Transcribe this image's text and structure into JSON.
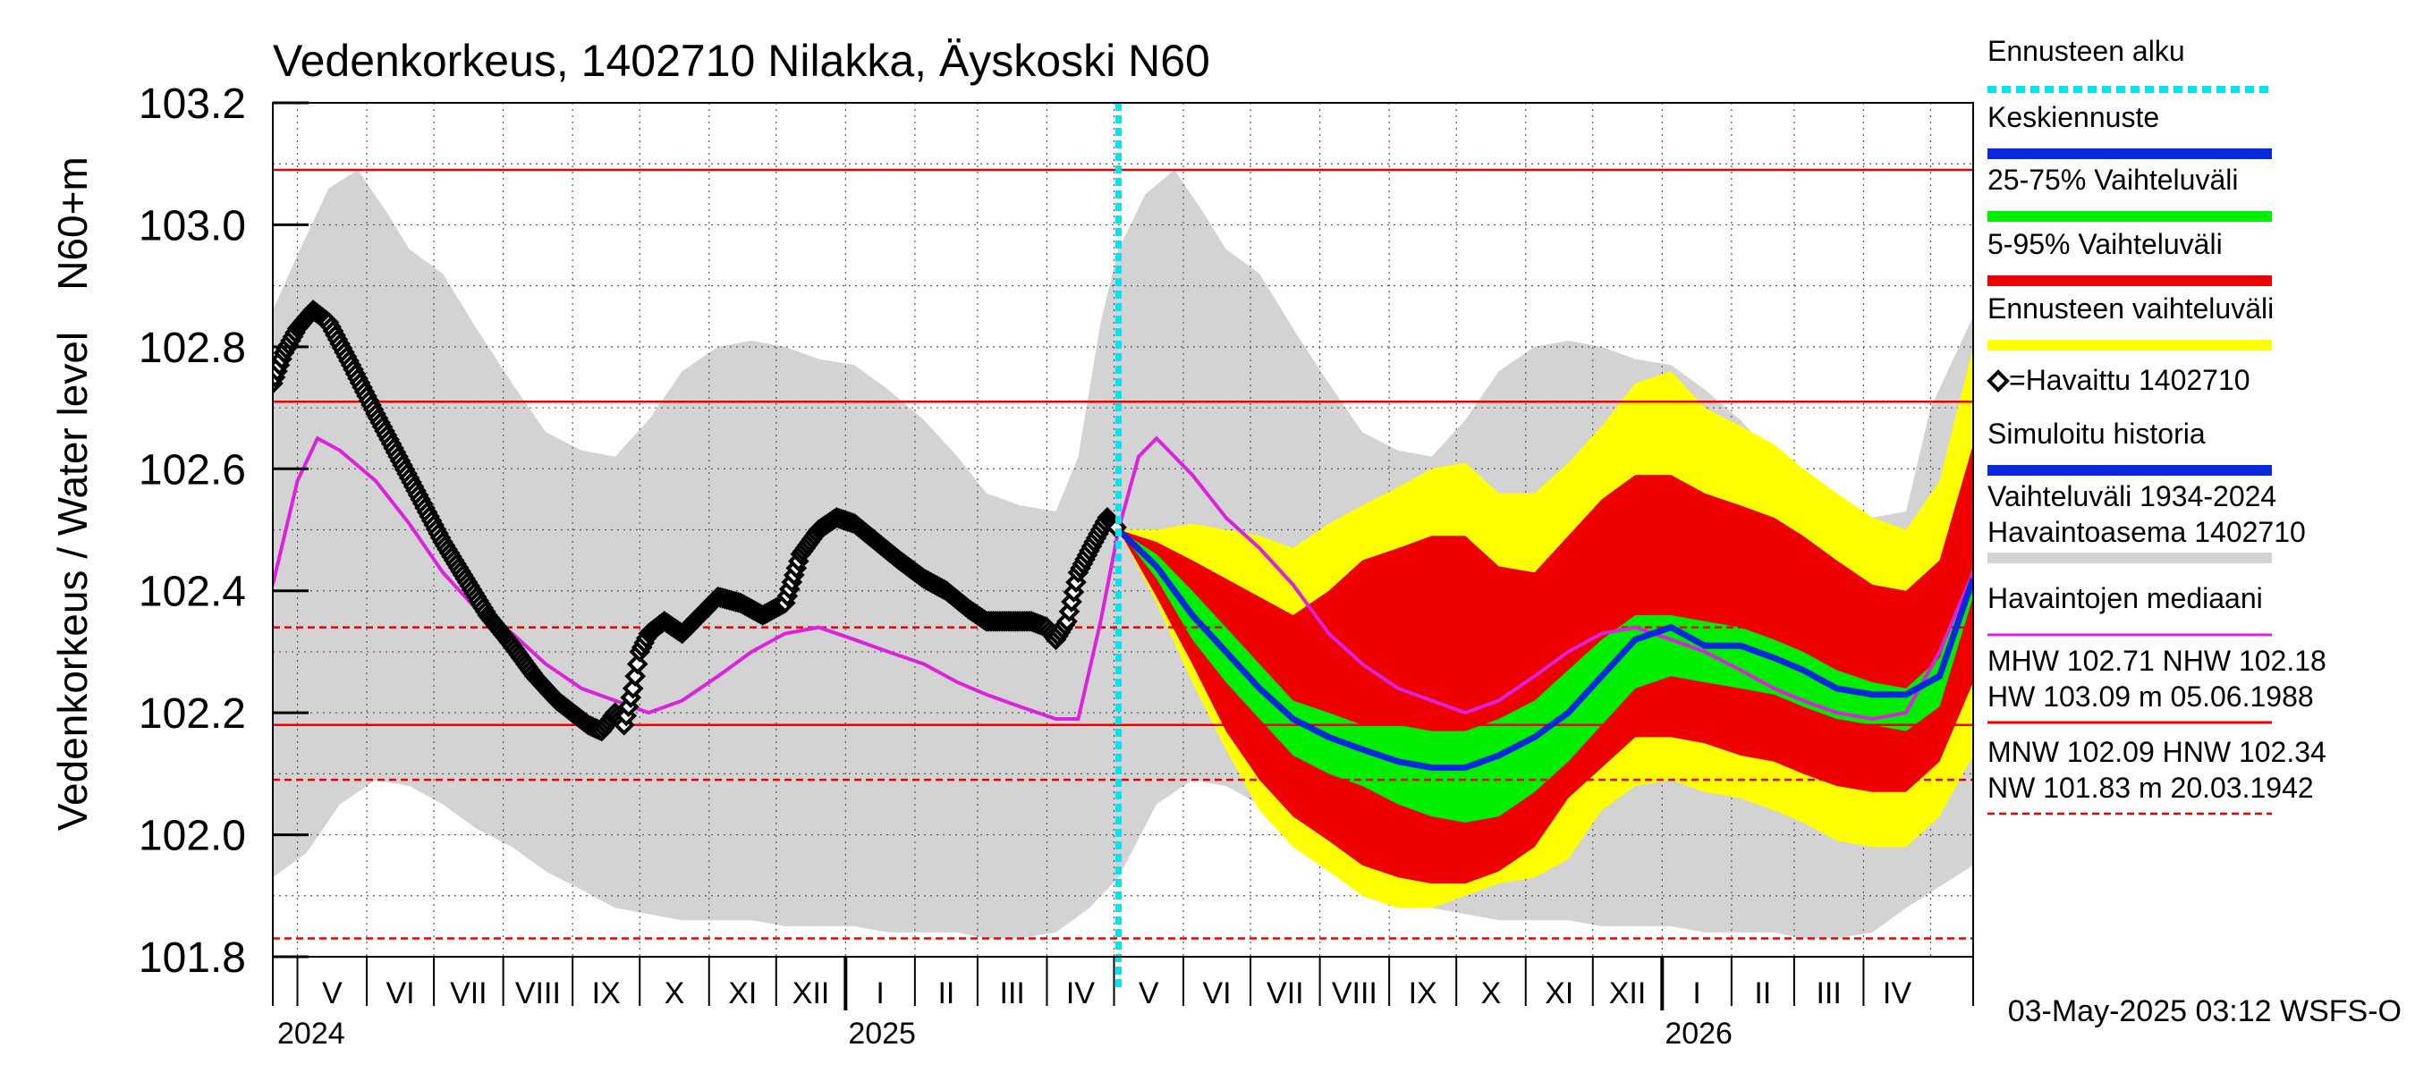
{
  "chart_data": {
    "type": "area",
    "title": "Vedenkorkeus, 1402710 Nilakka, Äyskoski N60",
    "ylabel": "Vedenkorkeus / Water level",
    "yunit": "N60+m",
    "ylim": [
      101.8,
      103.2
    ],
    "yticks": [
      "103.2",
      "103.0",
      "102.8",
      "102.6",
      "102.4",
      "102.2",
      "102.0",
      "101.8"
    ],
    "xlim": [
      "2024-04-20",
      "2026-05-20"
    ],
    "month_labels": [
      "V",
      "VI",
      "VII",
      "VIII",
      "IX",
      "X",
      "XI",
      "XII",
      "I",
      "II",
      "III",
      "IV",
      "V",
      "VI",
      "VII",
      "VIII",
      "IX",
      "X",
      "XI",
      "XII",
      "I",
      "II",
      "III",
      "IV"
    ],
    "year_labels": [
      "2024",
      "2025",
      "2026"
    ],
    "forecast_start": "2025-05-03",
    "footer": "03-May-2025 03:12 WSFS-O",
    "reference_lines": [
      {
        "name": "HW",
        "value": 103.09,
        "style": "solid"
      },
      {
        "name": "MHW",
        "value": 102.71,
        "style": "solid"
      },
      {
        "name": "HNW",
        "value": 102.34,
        "style": "dashed"
      },
      {
        "name": "NHW",
        "value": 102.18,
        "style": "solid"
      },
      {
        "name": "MNW",
        "value": 102.09,
        "style": "dashed"
      },
      {
        "name": "NW",
        "value": 101.83,
        "style": "dashed"
      }
    ],
    "legend": [
      {
        "label": "Ennusteen alku",
        "color": "#00e5ee",
        "kind": "dotted"
      },
      {
        "label": "Keskiennuste",
        "color": "#0a28dc",
        "kind": "line"
      },
      {
        "label": "25-75% Vaihteluväli",
        "color": "#00ee00",
        "kind": "line"
      },
      {
        "label": "5-95% Vaihteluväli",
        "color": "#ee0000",
        "kind": "line"
      },
      {
        "label": "Ennusteen vaihteluväli",
        "color": "#ffff00",
        "kind": "line"
      },
      {
        "label": "=Havaittu 1402710",
        "color": "#000000",
        "kind": "marker"
      },
      {
        "label": "Simuloitu historia",
        "color": "#0a28dc",
        "kind": "line"
      },
      {
        "label": "Vaihteluväli 1934-2024",
        "label2": " Havaintoasema 1402710",
        "color": "#d3d3d3",
        "kind": "line"
      },
      {
        "label": "Havaintojen mediaani",
        "color": "#dd22dd",
        "kind": "line"
      },
      {
        "label": "MHW 102.71 NHW 102.18",
        "label2": "HW 103.09 m 05.06.1988",
        "color": "#ee0000",
        "kind": "line"
      },
      {
        "label": "MNW 102.09 HNW 102.34",
        "label2": "NW 101.83 m 20.03.1942",
        "color": "#ee0000",
        "kind": "dashed"
      }
    ],
    "colors": {
      "history_band": "#d3d3d3",
      "forecast_total": "#ffff00",
      "p5_95": "#ee0000",
      "p25_75": "#00ee00",
      "mean": "#0a28dc",
      "observed": "#000000",
      "median": "#dd22dd",
      "forecast_start": "#00e5ee",
      "ref_lines": "#ee0000"
    },
    "series": {
      "history_upper": [
        [
          "2024-04-20",
          102.86
        ],
        [
          "2024-05-01",
          102.95
        ],
        [
          "2024-05-15",
          103.06
        ],
        [
          "2024-05-28",
          103.09
        ],
        [
          "2024-06-10",
          103.02
        ],
        [
          "2024-06-20",
          102.96
        ],
        [
          "2024-07-05",
          102.92
        ],
        [
          "2024-07-20",
          102.83
        ],
        [
          "2024-08-05",
          102.74
        ],
        [
          "2024-08-20",
          102.66
        ],
        [
          "2024-09-05",
          102.63
        ],
        [
          "2024-09-20",
          102.62
        ],
        [
          "2024-10-05",
          102.68
        ],
        [
          "2024-10-20",
          102.76
        ],
        [
          "2024-11-05",
          102.8
        ],
        [
          "2024-11-20",
          102.81
        ],
        [
          "2024-12-05",
          102.8
        ],
        [
          "2024-12-20",
          102.78
        ],
        [
          "2025-01-05",
          102.77
        ],
        [
          "2025-01-20",
          102.73
        ],
        [
          "2025-02-05",
          102.68
        ],
        [
          "2025-02-20",
          102.62
        ],
        [
          "2025-03-05",
          102.56
        ],
        [
          "2025-03-20",
          102.54
        ],
        [
          "2025-04-05",
          102.53
        ],
        [
          "2025-04-15",
          102.62
        ],
        [
          "2025-04-25",
          102.84
        ],
        [
          "2025-05-03",
          102.96
        ],
        [
          "2025-05-15",
          103.05
        ],
        [
          "2025-05-28",
          103.09
        ],
        [
          "2025-06-10",
          103.02
        ],
        [
          "2025-06-20",
          102.96
        ],
        [
          "2025-07-05",
          102.92
        ],
        [
          "2025-07-20",
          102.83
        ],
        [
          "2025-08-05",
          102.74
        ],
        [
          "2025-08-20",
          102.66
        ],
        [
          "2025-09-05",
          102.63
        ],
        [
          "2025-09-20",
          102.62
        ],
        [
          "2025-10-05",
          102.68
        ],
        [
          "2025-10-20",
          102.76
        ],
        [
          "2025-11-05",
          102.8
        ],
        [
          "2025-11-20",
          102.81
        ],
        [
          "2025-12-05",
          102.8
        ],
        [
          "2025-12-20",
          102.78
        ],
        [
          "2026-01-05",
          102.77
        ],
        [
          "2026-01-20",
          102.73
        ],
        [
          "2026-02-05",
          102.68
        ],
        [
          "2026-02-20",
          102.62
        ],
        [
          "2026-03-05",
          102.56
        ],
        [
          "2026-03-20",
          102.54
        ],
        [
          "2026-04-05",
          102.52
        ],
        [
          "2026-04-20",
          102.53
        ],
        [
          "2026-05-01",
          102.7
        ],
        [
          "2026-05-20",
          102.85
        ]
      ],
      "history_lower": [
        [
          "2024-04-20",
          101.93
        ],
        [
          "2024-05-05",
          101.97
        ],
        [
          "2024-05-20",
          102.05
        ],
        [
          "2024-06-05",
          102.09
        ],
        [
          "2024-06-20",
          102.08
        ],
        [
          "2024-07-05",
          102.05
        ],
        [
          "2024-07-20",
          102.01
        ],
        [
          "2024-08-05",
          101.98
        ],
        [
          "2024-08-20",
          101.94
        ],
        [
          "2024-09-05",
          101.91
        ],
        [
          "2024-09-20",
          101.88
        ],
        [
          "2024-10-05",
          101.87
        ],
        [
          "2024-10-20",
          101.86
        ],
        [
          "2024-11-05",
          101.86
        ],
        [
          "2024-11-20",
          101.86
        ],
        [
          "2024-12-05",
          101.85
        ],
        [
          "2024-12-20",
          101.85
        ],
        [
          "2025-01-05",
          101.85
        ],
        [
          "2025-01-20",
          101.84
        ],
        [
          "2025-02-05",
          101.84
        ],
        [
          "2025-02-20",
          101.84
        ],
        [
          "2025-03-05",
          101.83
        ],
        [
          "2025-03-20",
          101.83
        ],
        [
          "2025-04-05",
          101.84
        ],
        [
          "2025-04-20",
          101.88
        ],
        [
          "2025-05-03",
          101.93
        ],
        [
          "2025-05-20",
          102.05
        ],
        [
          "2025-06-05",
          102.09
        ],
        [
          "2025-06-20",
          102.08
        ],
        [
          "2025-07-05",
          102.05
        ],
        [
          "2025-07-20",
          102.01
        ],
        [
          "2025-08-05",
          101.98
        ],
        [
          "2025-08-20",
          101.94
        ],
        [
          "2025-09-05",
          101.91
        ],
        [
          "2025-09-20",
          101.88
        ],
        [
          "2025-10-05",
          101.87
        ],
        [
          "2025-10-20",
          101.86
        ],
        [
          "2025-11-05",
          101.86
        ],
        [
          "2025-11-20",
          101.86
        ],
        [
          "2025-12-05",
          101.85
        ],
        [
          "2025-12-20",
          101.85
        ],
        [
          "2026-01-05",
          101.85
        ],
        [
          "2026-01-20",
          101.84
        ],
        [
          "2026-02-05",
          101.84
        ],
        [
          "2026-02-20",
          101.84
        ],
        [
          "2026-03-05",
          101.83
        ],
        [
          "2026-03-20",
          101.83
        ],
        [
          "2026-04-05",
          101.84
        ],
        [
          "2026-04-20",
          101.88
        ],
        [
          "2026-05-20",
          101.95
        ]
      ],
      "median": [
        [
          "2024-04-20",
          102.41
        ],
        [
          "2024-05-01",
          102.58
        ],
        [
          "2024-05-10",
          102.65
        ],
        [
          "2024-05-20",
          102.63
        ],
        [
          "2024-06-05",
          102.58
        ],
        [
          "2024-06-20",
          102.51
        ],
        [
          "2024-07-05",
          102.43
        ],
        [
          "2024-07-20",
          102.37
        ],
        [
          "2024-08-05",
          102.33
        ],
        [
          "2024-08-20",
          102.28
        ],
        [
          "2024-09-05",
          102.24
        ],
        [
          "2024-09-20",
          102.22
        ],
        [
          "2024-10-05",
          102.2
        ],
        [
          "2024-10-20",
          102.22
        ],
        [
          "2024-11-05",
          102.26
        ],
        [
          "2024-11-20",
          102.3
        ],
        [
          "2024-12-05",
          102.33
        ],
        [
          "2024-12-20",
          102.34
        ],
        [
          "2025-01-05",
          102.32
        ],
        [
          "2025-01-20",
          102.3
        ],
        [
          "2025-02-05",
          102.28
        ],
        [
          "2025-02-20",
          102.25
        ],
        [
          "2025-03-05",
          102.23
        ],
        [
          "2025-03-20",
          102.21
        ],
        [
          "2025-04-05",
          102.19
        ],
        [
          "2025-04-15",
          102.19
        ],
        [
          "2025-04-25",
          102.35
        ],
        [
          "2025-05-03",
          102.5
        ],
        [
          "2025-05-12",
          102.62
        ],
        [
          "2025-05-20",
          102.65
        ],
        [
          "2025-06-05",
          102.59
        ],
        [
          "2025-06-20",
          102.52
        ],
        [
          "2025-07-05",
          102.47
        ],
        [
          "2025-07-20",
          102.41
        ],
        [
          "2025-08-05",
          102.33
        ],
        [
          "2025-08-20",
          102.28
        ],
        [
          "2025-09-05",
          102.24
        ],
        [
          "2025-09-20",
          102.22
        ],
        [
          "2025-10-05",
          102.2
        ],
        [
          "2025-10-20",
          102.22
        ],
        [
          "2025-11-05",
          102.26
        ],
        [
          "2025-11-20",
          102.3
        ],
        [
          "2025-12-05",
          102.33
        ],
        [
          "2025-12-20",
          102.34
        ],
        [
          "2026-01-05",
          102.32
        ],
        [
          "2026-01-20",
          102.3
        ],
        [
          "2026-02-05",
          102.27
        ],
        [
          "2026-02-20",
          102.24
        ],
        [
          "2026-03-05",
          102.22
        ],
        [
          "2026-03-20",
          102.2
        ],
        [
          "2026-04-05",
          102.19
        ],
        [
          "2026-04-20",
          102.2
        ],
        [
          "2026-05-05",
          102.3
        ],
        [
          "2026-05-20",
          102.43
        ]
      ],
      "observed": [
        [
          "2024-04-20",
          102.74
        ],
        [
          "2024-04-25",
          102.79
        ],
        [
          "2024-05-01",
          102.83
        ],
        [
          "2024-05-08",
          102.86
        ],
        [
          "2024-05-15",
          102.84
        ],
        [
          "2024-05-25",
          102.77
        ],
        [
          "2024-06-05",
          102.69
        ],
        [
          "2024-06-15",
          102.62
        ],
        [
          "2024-06-25",
          102.55
        ],
        [
          "2024-07-05",
          102.48
        ],
        [
          "2024-07-15",
          102.42
        ],
        [
          "2024-07-25",
          102.36
        ],
        [
          "2024-08-05",
          102.31
        ],
        [
          "2024-08-15",
          102.26
        ],
        [
          "2024-08-25",
          102.22
        ],
        [
          "2024-09-01",
          102.2
        ],
        [
          "2024-09-08",
          102.18
        ],
        [
          "2024-09-14",
          102.17
        ],
        [
          "2024-09-20",
          102.2
        ],
        [
          "2024-09-24",
          102.18
        ],
        [
          "2024-09-28",
          102.24
        ],
        [
          "2024-10-01",
          102.3
        ],
        [
          "2024-10-05",
          102.33
        ],
        [
          "2024-10-12",
          102.35
        ],
        [
          "2024-10-20",
          102.33
        ],
        [
          "2024-10-28",
          102.36
        ],
        [
          "2024-11-05",
          102.39
        ],
        [
          "2024-11-15",
          102.38
        ],
        [
          "2024-11-25",
          102.36
        ],
        [
          "2024-12-05",
          102.38
        ],
        [
          "2024-12-12",
          102.46
        ],
        [
          "2024-12-20",
          102.5
        ],
        [
          "2024-12-28",
          102.52
        ],
        [
          "2025-01-05",
          102.51
        ],
        [
          "2025-01-15",
          102.48
        ],
        [
          "2025-01-25",
          102.45
        ],
        [
          "2025-02-05",
          102.42
        ],
        [
          "2025-02-15",
          102.4
        ],
        [
          "2025-02-25",
          102.37
        ],
        [
          "2025-03-05",
          102.35
        ],
        [
          "2025-03-15",
          102.35
        ],
        [
          "2025-03-25",
          102.35
        ],
        [
          "2025-04-01",
          102.34
        ],
        [
          "2025-04-05",
          102.32
        ],
        [
          "2025-04-10",
          102.35
        ],
        [
          "2025-04-15",
          102.43
        ],
        [
          "2025-04-22",
          102.48
        ],
        [
          "2025-04-28",
          102.52
        ],
        [
          "2025-05-03",
          102.5
        ]
      ],
      "forecast_dates": [
        "2025-05-03",
        "2025-05-20",
        "2025-06-05",
        "2025-06-20",
        "2025-07-05",
        "2025-07-20",
        "2025-08-05",
        "2025-08-20",
        "2025-09-05",
        "2025-09-20",
        "2025-10-05",
        "2025-10-20",
        "2025-11-05",
        "2025-11-20",
        "2025-12-05",
        "2025-12-20",
        "2026-01-05",
        "2026-01-20",
        "2026-02-05",
        "2026-02-20",
        "2026-03-05",
        "2026-03-20",
        "2026-04-05",
        "2026-04-20",
        "2026-05-05",
        "2026-05-20"
      ],
      "forecast_max": [
        102.5,
        102.5,
        102.51,
        102.5,
        102.49,
        102.47,
        102.51,
        102.54,
        102.57,
        102.6,
        102.61,
        102.56,
        102.56,
        102.61,
        102.67,
        102.74,
        102.76,
        102.7,
        102.67,
        102.64,
        102.6,
        102.56,
        102.52,
        102.5,
        102.58,
        102.8
      ],
      "p95": [
        102.5,
        102.48,
        102.45,
        102.42,
        102.39,
        102.36,
        102.4,
        102.45,
        102.47,
        102.49,
        102.49,
        102.44,
        102.43,
        102.49,
        102.55,
        102.59,
        102.59,
        102.56,
        102.54,
        102.52,
        102.49,
        102.45,
        102.41,
        102.4,
        102.45,
        102.64
      ],
      "p75": [
        102.5,
        102.46,
        102.4,
        102.34,
        102.28,
        102.22,
        102.2,
        102.18,
        102.18,
        102.17,
        102.17,
        102.19,
        102.22,
        102.27,
        102.32,
        102.36,
        102.36,
        102.35,
        102.34,
        102.32,
        102.3,
        102.27,
        102.25,
        102.24,
        102.29,
        102.44
      ],
      "mean": [
        102.5,
        102.44,
        102.36,
        102.3,
        102.24,
        102.19,
        102.16,
        102.14,
        102.12,
        102.11,
        102.11,
        102.13,
        102.16,
        102.2,
        102.26,
        102.32,
        102.34,
        102.31,
        102.31,
        102.29,
        102.27,
        102.24,
        102.23,
        102.23,
        102.26,
        102.42
      ],
      "p25": [
        102.5,
        102.42,
        102.32,
        102.25,
        102.19,
        102.13,
        102.1,
        102.08,
        102.05,
        102.03,
        102.02,
        102.03,
        102.07,
        102.12,
        102.18,
        102.24,
        102.26,
        102.25,
        102.24,
        102.23,
        102.21,
        102.19,
        102.18,
        102.17,
        102.21,
        102.39
      ],
      "p5": [
        102.5,
        102.39,
        102.28,
        102.17,
        102.09,
        102.03,
        101.99,
        101.95,
        101.93,
        101.92,
        101.92,
        101.94,
        101.98,
        102.06,
        102.11,
        102.16,
        102.16,
        102.15,
        102.13,
        102.12,
        102.1,
        102.08,
        102.07,
        102.07,
        102.12,
        102.25
      ],
      "forecast_min": [
        102.5,
        102.38,
        102.25,
        102.14,
        102.04,
        101.98,
        101.94,
        101.9,
        101.88,
        101.88,
        101.9,
        101.92,
        101.93,
        101.96,
        102.04,
        102.08,
        102.09,
        102.07,
        102.06,
        102.04,
        102.02,
        101.99,
        101.98,
        101.98,
        102.03,
        102.13
      ]
    }
  }
}
